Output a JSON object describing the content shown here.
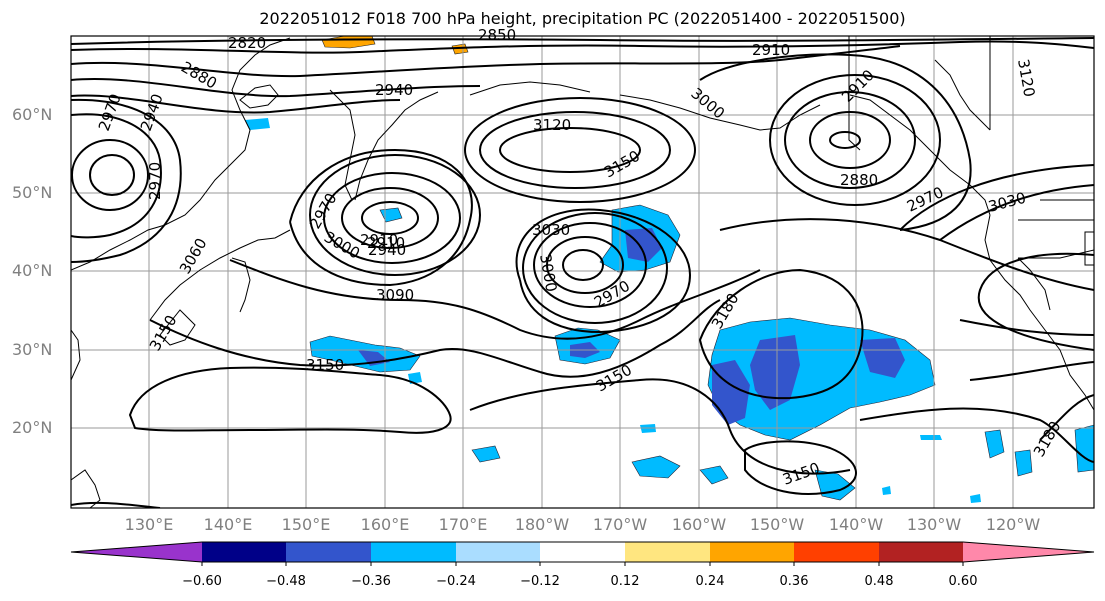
{
  "title": "2022051012 F018 700 hPa height, precipitation PC (2022051400 - 2022051500)",
  "lat_labels": [
    "60°N",
    "50°N",
    "40°N",
    "30°N",
    "20°N"
  ],
  "lon_labels": [
    "130°E",
    "140°E",
    "150°E",
    "160°E",
    "170°E",
    "180°W",
    "170°W",
    "160°W",
    "150°W",
    "140°W",
    "130°W",
    "120°W"
  ],
  "colorbar": {
    "ticks": [
      "−0.60",
      "−0.48",
      "−0.36",
      "−0.24",
      "−0.12",
      "0.12",
      "0.24",
      "0.36",
      "0.48",
      "0.60"
    ],
    "colors": [
      "#9933cc",
      "#000088",
      "#3355cc",
      "#00bbff",
      "#aaddff",
      "#ffffff",
      "#ffe680",
      "#ffa500",
      "#ff4000",
      "#b22222",
      "#ff88aa"
    ]
  },
  "contour_labels": [
    "2820",
    "2850",
    "2910",
    "2880",
    "2940",
    "2970",
    "2940",
    "3120",
    "3000",
    "2910",
    "3150",
    "2880",
    "2970",
    "3030",
    "2970",
    "3060",
    "2970",
    "3000",
    "2910",
    "2940",
    "3030",
    "3000",
    "3090",
    "2970",
    "3180",
    "3150",
    "3150",
    "3150",
    "3180",
    "3150",
    "3120",
    "2910"
  ]
}
